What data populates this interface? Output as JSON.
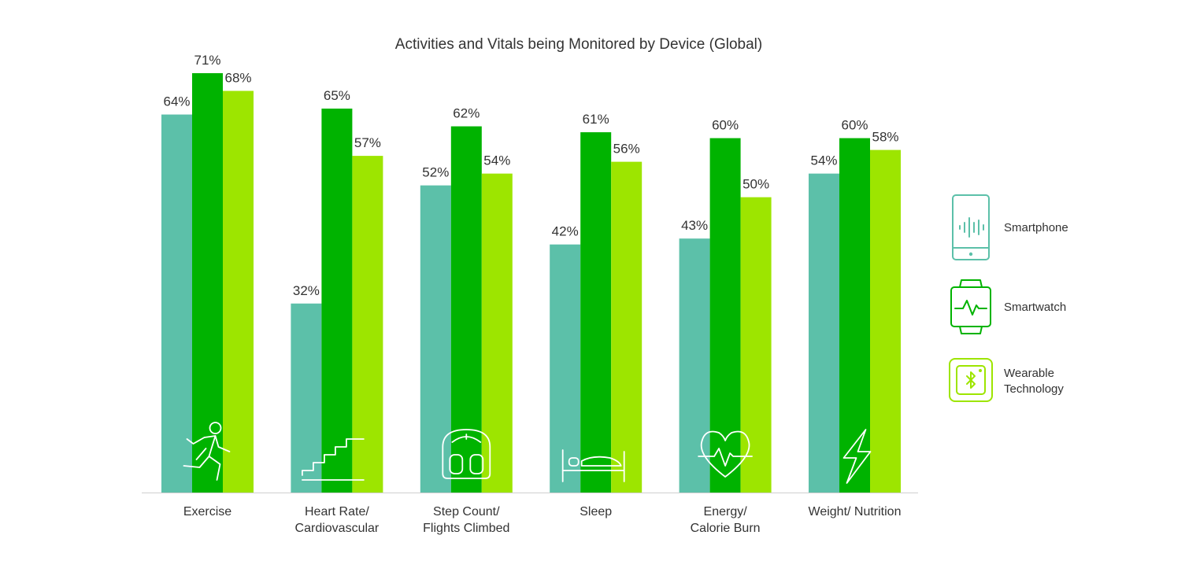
{
  "chart_data": {
    "type": "bar",
    "title": "Activities and Vitals being Monitored by Device (Global)",
    "categories": [
      [
        "Exercise"
      ],
      [
        "Heart Rate/",
        "Cardiovascular"
      ],
      [
        "Step Count/",
        "Flights Climbed"
      ],
      [
        "Sleep"
      ],
      [
        "Energy/",
        "Calorie Burn"
      ],
      [
        "Weight/ Nutrition"
      ]
    ],
    "category_icons": [
      "running-person-icon",
      "stairs-icon",
      "scale-icon",
      "bed-icon",
      "heart-pulse-icon",
      "lightning-icon"
    ],
    "series": [
      {
        "name": "Smartphone",
        "color": "#5cc0a9",
        "values": [
          64,
          32,
          52,
          42,
          43,
          54
        ],
        "labels": [
          "64%",
          "32%",
          "52%",
          "42%",
          "43%",
          "54%"
        ]
      },
      {
        "name": "Smartwatch",
        "color": "#00b300",
        "values": [
          71,
          65,
          62,
          61,
          60,
          60
        ],
        "labels": [
          "71%",
          "65%",
          "62%",
          "61%",
          "60%",
          "60%"
        ]
      },
      {
        "name": "Wearable Technology",
        "color": "#9de500",
        "values": [
          68,
          57,
          54,
          56,
          50,
          58
        ],
        "labels": [
          "68%",
          "57%",
          "54%",
          "56%",
          "50%",
          "58%"
        ]
      }
    ],
    "ylim": [
      0,
      71
    ],
    "unit": "%",
    "grid": false,
    "legend": {
      "position": "right",
      "items": [
        {
          "lines": [
            "Smartphone"
          ],
          "icon": "smartphone-icon",
          "color": "#5cc0a9"
        },
        {
          "lines": [
            "Smartwatch"
          ],
          "icon": "smartwatch-icon",
          "color": "#00b300"
        },
        {
          "lines": [
            "Wearable",
            "Technology"
          ],
          "icon": "wearable-bluetooth-icon",
          "color": "#9de500"
        }
      ]
    }
  }
}
